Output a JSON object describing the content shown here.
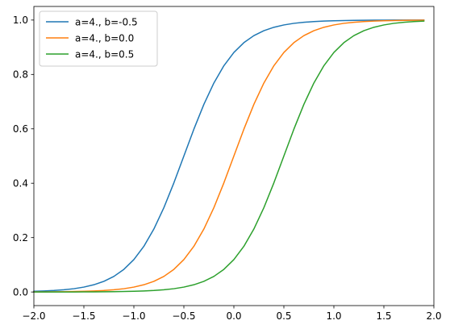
{
  "chart_data": {
    "type": "line",
    "title": "",
    "xlabel": "",
    "ylabel": "",
    "xlim": [
      -2.0,
      2.0
    ],
    "ylim": [
      -0.05,
      1.05
    ],
    "x_ticks": [
      -2.0,
      -1.5,
      -1.0,
      -0.5,
      0.0,
      0.5,
      1.0,
      1.5,
      2.0
    ],
    "x_tick_labels": [
      "−2.0",
      "−1.5",
      "−1.0",
      "−0.5",
      "0.0",
      "0.5",
      "1.0",
      "1.5",
      "2.0"
    ],
    "y_ticks": [
      0.0,
      0.2,
      0.4,
      0.6,
      0.8,
      1.0
    ],
    "y_tick_labels": [
      "0.0",
      "0.2",
      "0.4",
      "0.6",
      "0.8",
      "1.0"
    ],
    "grid": false,
    "legend_position": "upper-left",
    "x": [
      -2.0,
      -1.9,
      -1.8,
      -1.7,
      -1.6,
      -1.5,
      -1.4,
      -1.3,
      -1.2,
      -1.1,
      -1.0,
      -0.9,
      -0.8,
      -0.7,
      -0.6,
      -0.5,
      -0.4,
      -0.3,
      -0.2,
      -0.1,
      0.0,
      0.1,
      0.2,
      0.3,
      0.4,
      0.5,
      0.6,
      0.7,
      0.8,
      0.9,
      1.0,
      1.1,
      1.2,
      1.3,
      1.4,
      1.5,
      1.6,
      1.7,
      1.8,
      1.9
    ],
    "series": [
      {
        "name": "a=4., b=-0.5",
        "color": "#1f77b4",
        "values": [
          0.0025,
          0.0037,
          0.0055,
          0.0082,
          0.0121,
          0.018,
          0.0266,
          0.0392,
          0.0573,
          0.0832,
          0.1192,
          0.168,
          0.2315,
          0.31,
          0.4013,
          0.5,
          0.5987,
          0.69,
          0.7685,
          0.832,
          0.8808,
          0.9168,
          0.9427,
          0.9608,
          0.9734,
          0.982,
          0.9879,
          0.9918,
          0.9945,
          0.9963,
          0.9975,
          0.9983,
          0.9989,
          0.9993,
          0.9995,
          0.9997,
          0.9998,
          0.9998,
          0.9999,
          0.9999
        ]
      },
      {
        "name": "a=4., b=0.0",
        "color": "#ff7f0e",
        "values": [
          0.0003,
          0.0005,
          0.0007,
          0.0011,
          0.0017,
          0.0025,
          0.0037,
          0.0055,
          0.0082,
          0.0121,
          0.018,
          0.0266,
          0.0392,
          0.0573,
          0.0832,
          0.1192,
          0.168,
          0.2315,
          0.31,
          0.4013,
          0.5,
          0.5987,
          0.69,
          0.7685,
          0.832,
          0.8808,
          0.9168,
          0.9427,
          0.9608,
          0.9734,
          0.982,
          0.9879,
          0.9918,
          0.9945,
          0.9963,
          0.9975,
          0.9983,
          0.9989,
          0.9993,
          0.9995
        ]
      },
      {
        "name": "a=4., b=0.5",
        "color": "#2ca02c",
        "values": [
          0.0,
          0.0001,
          0.0001,
          0.0002,
          0.0002,
          0.0003,
          0.0005,
          0.0007,
          0.0011,
          0.0017,
          0.0025,
          0.0037,
          0.0055,
          0.0082,
          0.0121,
          0.018,
          0.0266,
          0.0392,
          0.0573,
          0.0832,
          0.1192,
          0.168,
          0.2315,
          0.31,
          0.4013,
          0.5,
          0.5987,
          0.69,
          0.7685,
          0.832,
          0.8808,
          0.9168,
          0.9427,
          0.9608,
          0.9734,
          0.982,
          0.9879,
          0.9918,
          0.9945,
          0.9963
        ]
      }
    ]
  }
}
